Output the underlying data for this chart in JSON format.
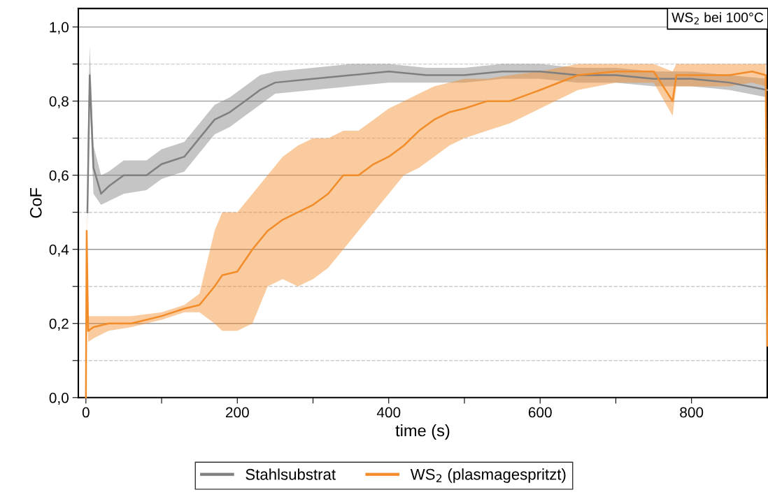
{
  "chart_data": {
    "type": "line",
    "xlabel": "time (s)",
    "ylabel": "CoF",
    "annotations": [
      "WS$_{2}$ bei 100°C"
    ],
    "xlim": [
      -10,
      900
    ],
    "ylim": [
      0,
      1.05
    ],
    "xticks": [
      0,
      {
        "value": 100,
        "label": null
      },
      200,
      {
        "value": 300,
        "label": null
      },
      400,
      {
        "value": 500,
        "label": null
      },
      600,
      {
        "value": 700,
        "label": null
      },
      800
    ],
    "yticks": [
      {
        "value": 0,
        "label": "0,0"
      },
      {
        "value": 0.1,
        "label": null
      },
      {
        "value": 0.2,
        "label": "0,2"
      },
      {
        "value": 0.3,
        "label": null
      },
      {
        "value": 0.4,
        "label": "0,4"
      },
      {
        "value": 0.5,
        "label": null
      },
      {
        "value": 0.6,
        "label": "0,6"
      },
      {
        "value": 0.7,
        "label": null
      },
      {
        "value": 0.8,
        "label": "0,8"
      },
      {
        "value": 0.9,
        "label": null
      },
      {
        "value": 1.0,
        "label": "1,0"
      }
    ],
    "grid": "y",
    "legend": "bottom",
    "line_style": "solid",
    "marker": "none",
    "series": [
      {
        "name": "Stahlsubstrat",
        "color": "#7f7f7f",
        "x": [
          2,
          5,
          10,
          20,
          30,
          50,
          80,
          100,
          130,
          150,
          170,
          190,
          210,
          230,
          250,
          300,
          350,
          400,
          450,
          500,
          550,
          600,
          650,
          700,
          750,
          800,
          850,
          900
        ],
        "values": [
          0.5,
          0.87,
          0.62,
          0.55,
          0.57,
          0.6,
          0.6,
          0.63,
          0.65,
          0.7,
          0.75,
          0.77,
          0.8,
          0.83,
          0.85,
          0.86,
          0.87,
          0.88,
          0.87,
          0.87,
          0.88,
          0.88,
          0.87,
          0.87,
          0.86,
          0.86,
          0.85,
          0.83
        ],
        "lower": [
          0.45,
          0.8,
          0.55,
          0.52,
          0.53,
          0.55,
          0.56,
          0.59,
          0.61,
          0.66,
          0.71,
          0.73,
          0.76,
          0.79,
          0.82,
          0.83,
          0.84,
          0.85,
          0.85,
          0.85,
          0.86,
          0.86,
          0.85,
          0.85,
          0.84,
          0.84,
          0.83,
          0.81
        ],
        "upper": [
          0.65,
          0.95,
          0.68,
          0.6,
          0.61,
          0.64,
          0.64,
          0.67,
          0.69,
          0.74,
          0.79,
          0.81,
          0.84,
          0.87,
          0.88,
          0.89,
          0.9,
          0.9,
          0.89,
          0.89,
          0.9,
          0.9,
          0.89,
          0.89,
          0.88,
          0.88,
          0.87,
          0.86
        ]
      },
      {
        "name": "WS$_{2}$ (plasmagespritzt)",
        "color": "#f28c28",
        "x": [
          0,
          1,
          3,
          10,
          30,
          60,
          100,
          130,
          150,
          170,
          180,
          200,
          220,
          240,
          260,
          280,
          300,
          320,
          340,
          360,
          380,
          400,
          420,
          440,
          460,
          480,
          500,
          530,
          560,
          600,
          650,
          700,
          750,
          775,
          780,
          800,
          850,
          880,
          898,
          900
        ],
        "values": [
          0.0,
          0.45,
          0.18,
          0.19,
          0.2,
          0.2,
          0.22,
          0.24,
          0.25,
          0.3,
          0.33,
          0.34,
          0.4,
          0.45,
          0.48,
          0.5,
          0.52,
          0.55,
          0.6,
          0.6,
          0.63,
          0.65,
          0.68,
          0.72,
          0.75,
          0.77,
          0.78,
          0.8,
          0.8,
          0.83,
          0.87,
          0.88,
          0.88,
          0.8,
          0.87,
          0.87,
          0.87,
          0.88,
          0.87,
          0.14
        ],
        "lower": [
          0.0,
          0.3,
          0.15,
          0.16,
          0.18,
          0.19,
          0.21,
          0.23,
          0.23,
          0.2,
          0.18,
          0.18,
          0.2,
          0.3,
          0.32,
          0.3,
          0.32,
          0.35,
          0.4,
          0.45,
          0.5,
          0.55,
          0.6,
          0.62,
          0.65,
          0.68,
          0.7,
          0.72,
          0.74,
          0.78,
          0.83,
          0.85,
          0.85,
          0.76,
          0.84,
          0.84,
          0.84,
          0.85,
          0.84,
          0.1
        ],
        "upper": [
          0.1,
          0.5,
          0.22,
          0.22,
          0.22,
          0.22,
          0.23,
          0.25,
          0.28,
          0.45,
          0.5,
          0.5,
          0.55,
          0.6,
          0.65,
          0.68,
          0.7,
          0.7,
          0.72,
          0.72,
          0.75,
          0.78,
          0.8,
          0.82,
          0.84,
          0.85,
          0.86,
          0.86,
          0.87,
          0.88,
          0.9,
          0.9,
          0.9,
          0.88,
          0.9,
          0.9,
          0.9,
          0.9,
          0.9,
          0.45
        ]
      }
    ]
  }
}
